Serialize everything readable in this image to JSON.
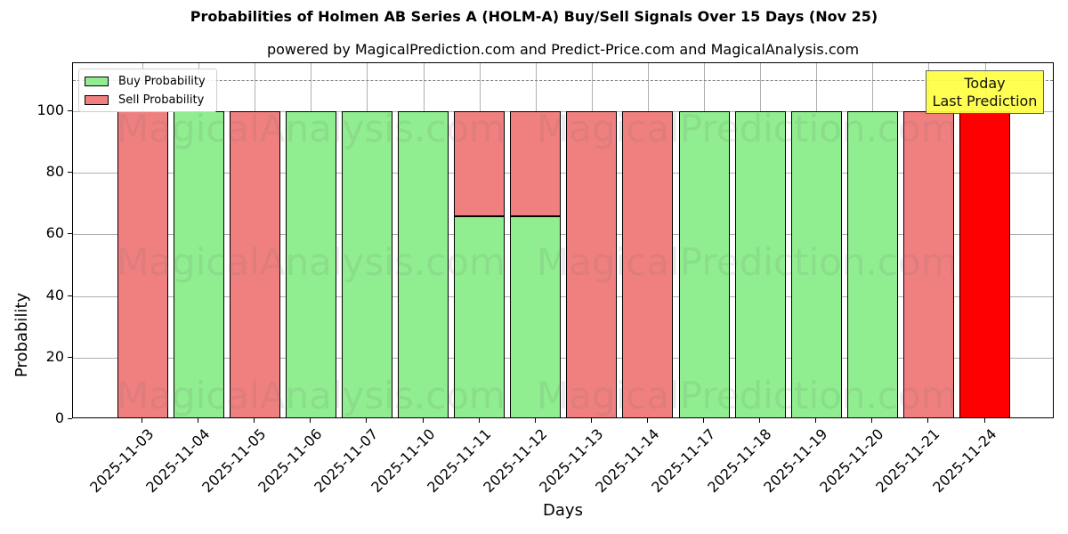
{
  "header": {
    "title": "Probabilities of Holmen AB Series A (HOLM-A) Buy/Sell Signals Over 15 Days (Nov 25)",
    "subtitle": "powered by MagicalPrediction.com and Predict-Price.com and MagicalAnalysis.com"
  },
  "legend": {
    "buy_label": "Buy Probability",
    "sell_label": "Sell Probability"
  },
  "annotation": {
    "line1": "Today",
    "line2": "Last Prediction"
  },
  "watermarks": [
    "MagicalAnalysis.com",
    "MagicalPrediction.com"
  ],
  "colors": {
    "buy": "#90ee90",
    "sell": "#f08080",
    "today": "#ff0000",
    "annotation_bg": "#ffff44",
    "refline": "#808080"
  },
  "chart_data": {
    "type": "bar",
    "stacked": true,
    "title": "Probabilities of Holmen AB Series A (HOLM-A) Buy/Sell Signals Over 15 Days (Nov 25)",
    "subtitle": "powered by MagicalPrediction.com and Predict-Price.com and MagicalAnalysis.com",
    "xlabel": "Days",
    "ylabel": "Probability",
    "ylim": [
      0,
      115
    ],
    "yticks": [
      0,
      20,
      40,
      60,
      80,
      100
    ],
    "reference_line": {
      "y": 110,
      "style": "dashed",
      "color": "#808080"
    },
    "grid": true,
    "legend_position": "upper left",
    "categories": [
      "2025-11-03",
      "2025-11-04",
      "2025-11-05",
      "2025-11-06",
      "2025-11-07",
      "2025-11-10",
      "2025-11-11",
      "2025-11-12",
      "2025-11-13",
      "2025-11-14",
      "2025-11-17",
      "2025-11-18",
      "2025-11-19",
      "2025-11-20",
      "2025-11-21",
      "2025-11-24"
    ],
    "series": [
      {
        "name": "Buy Probability",
        "color": "#90ee90",
        "values": [
          0,
          100,
          0,
          100,
          100,
          100,
          66,
          66,
          0,
          0,
          100,
          100,
          100,
          100,
          0,
          0
        ]
      },
      {
        "name": "Sell Probability",
        "color": "#f08080",
        "values": [
          100,
          0,
          100,
          0,
          0,
          0,
          34,
          34,
          100,
          100,
          0,
          0,
          0,
          0,
          100,
          100
        ]
      }
    ],
    "highlight": {
      "category": "2025-11-24",
      "color": "#ff0000",
      "label": "Today\nLast Prediction"
    }
  }
}
